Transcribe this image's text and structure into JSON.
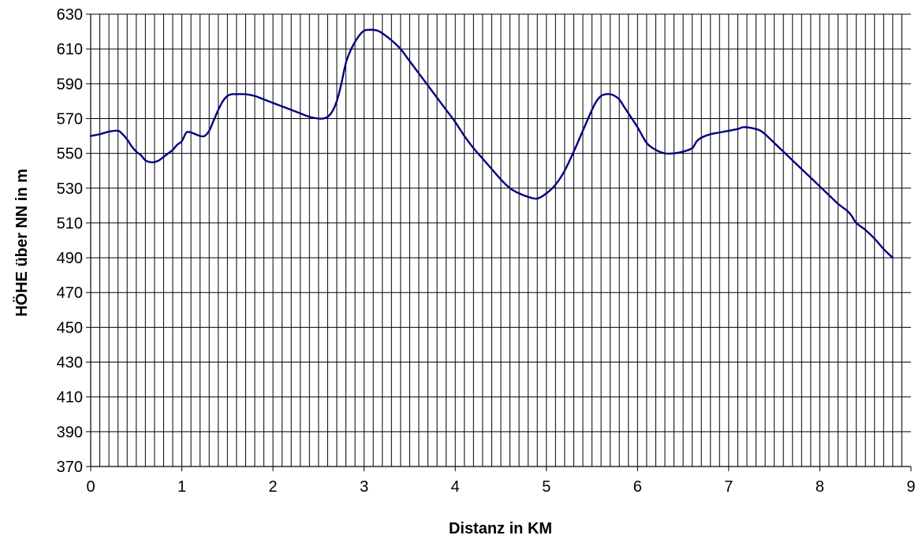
{
  "chart_data": {
    "type": "line",
    "title": "",
    "xlabel": "Distanz in KM",
    "ylabel": "HÖHE über NN in m",
    "xlim": [
      0,
      9
    ],
    "ylim": [
      370,
      630
    ],
    "x_ticks": [
      "0",
      "1",
      "2",
      "3",
      "4",
      "5",
      "6",
      "7",
      "8",
      "9"
    ],
    "y_ticks": [
      "370",
      "390",
      "410",
      "430",
      "450",
      "470",
      "490",
      "510",
      "530",
      "550",
      "570",
      "590",
      "610",
      "630"
    ],
    "x_minor_step": 0.1,
    "grid": true,
    "legend": "none",
    "line_color": "#000080",
    "series": [
      {
        "x": [
          0,
          0.1,
          0.2,
          0.3,
          0.35,
          0.4,
          0.45,
          0.5,
          0.55,
          0.6,
          0.65,
          0.7,
          0.75,
          0.8,
          0.85,
          0.9,
          0.95,
          1.0,
          1.05,
          1.1,
          1.15,
          1.2,
          1.25,
          1.3,
          1.35,
          1.4,
          1.45,
          1.5,
          1.55,
          1.6,
          1.7,
          1.8,
          1.9,
          2.0,
          2.1,
          2.2,
          2.3,
          2.4,
          2.5,
          2.55,
          2.6,
          2.65,
          2.7,
          2.75,
          2.8,
          2.85,
          2.9,
          2.95,
          3.0,
          3.05,
          3.1,
          3.15,
          3.2,
          3.3,
          3.4,
          3.5,
          3.6,
          3.7,
          3.8,
          3.9,
          4.0,
          4.1,
          4.2,
          4.3,
          4.4,
          4.5,
          4.6,
          4.7,
          4.8,
          4.9,
          5.0,
          5.1,
          5.2,
          5.3,
          5.4,
          5.5,
          5.55,
          5.6,
          5.65,
          5.7,
          5.75,
          5.8,
          5.85,
          5.9,
          6.0,
          6.1,
          6.2,
          6.3,
          6.4,
          6.5,
          6.6,
          6.65,
          6.7,
          6.8,
          6.9,
          7.0,
          7.1,
          7.15,
          7.2,
          7.3,
          7.35,
          7.4,
          7.5,
          7.6,
          7.7,
          7.8,
          7.9,
          8.0,
          8.1,
          8.2,
          8.3,
          8.35,
          8.4,
          8.5,
          8.6,
          8.7,
          8.8
        ],
        "y": [
          560,
          561,
          562.5,
          563,
          561,
          558,
          554,
          551,
          549,
          546,
          545,
          545,
          546,
          548,
          550,
          552,
          555,
          557,
          562,
          562,
          561,
          560,
          560,
          563,
          569,
          575,
          580,
          583,
          584,
          584,
          584,
          583,
          581,
          579,
          577,
          575,
          573,
          571,
          570,
          570,
          571,
          574,
          580,
          590,
          602,
          609,
          614,
          618,
          620.5,
          621,
          621,
          620.5,
          619,
          615,
          610,
          603,
          596,
          589,
          582,
          575,
          568,
          560,
          553,
          547,
          541,
          535,
          530,
          527,
          525,
          524,
          527,
          532,
          540,
          551,
          563,
          575,
          580,
          583,
          584,
          584,
          583,
          581,
          577,
          573,
          565,
          556,
          552,
          550,
          550,
          551,
          553,
          557,
          559,
          561,
          562,
          563,
          564,
          565,
          565,
          564,
          563,
          561,
          556,
          551,
          546,
          541,
          536,
          531,
          526,
          521,
          517,
          514,
          510,
          506,
          501,
          495,
          490
        ]
      }
    ]
  }
}
